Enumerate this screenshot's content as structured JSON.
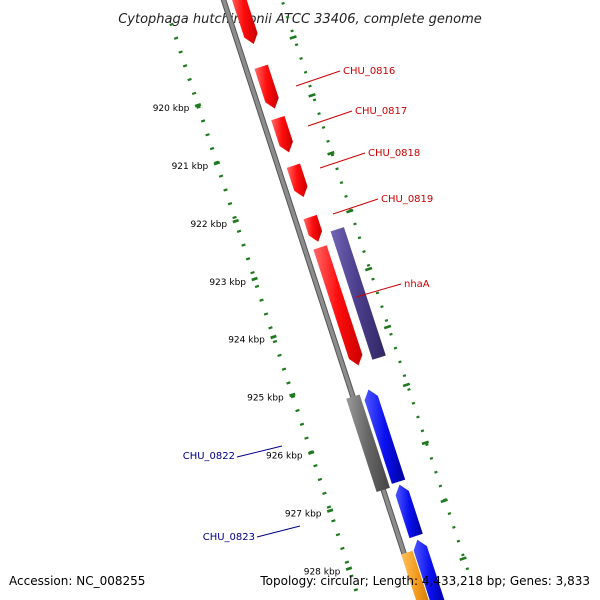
{
  "title": "Cytophaga hutchinsonii ATCC 33406, complete genome",
  "footer": {
    "accession": "Accession: NC_008255",
    "topology": "Topology: circular; Length: 4,433,218 bp; Genes: 3,833"
  },
  "colors": {
    "forward_gene": "#ff1a1a",
    "reverse_gene": "#0a10ee",
    "cog_purple": "#4a3d8c",
    "cog_gray": "#666666",
    "cog_orange": "#f39a1c",
    "backbone": "#8c8c8c",
    "ticks": "#1f7a1f",
    "label_red": "#cc0000",
    "label_blue": "#00008b"
  },
  "ruler": [
    "920 kbp",
    "921 kbp",
    "922 kbp",
    "923 kbp",
    "924 kbp",
    "925 kbp",
    "926 kbp",
    "927 kbp",
    "928 kbp"
  ],
  "labels": [
    {
      "text": "CHU_0816",
      "color": "#cc0000"
    },
    {
      "text": "CHU_0817",
      "color": "#cc0000"
    },
    {
      "text": "CHU_0818",
      "color": "#cc0000"
    },
    {
      "text": "CHU_0819",
      "color": "#cc0000"
    },
    {
      "text": "nhaA",
      "color": "#cc0000"
    },
    {
      "text": "CHU_0822",
      "color": "#00008b"
    },
    {
      "text": "CHU_0823",
      "color": "#00008b"
    }
  ]
}
